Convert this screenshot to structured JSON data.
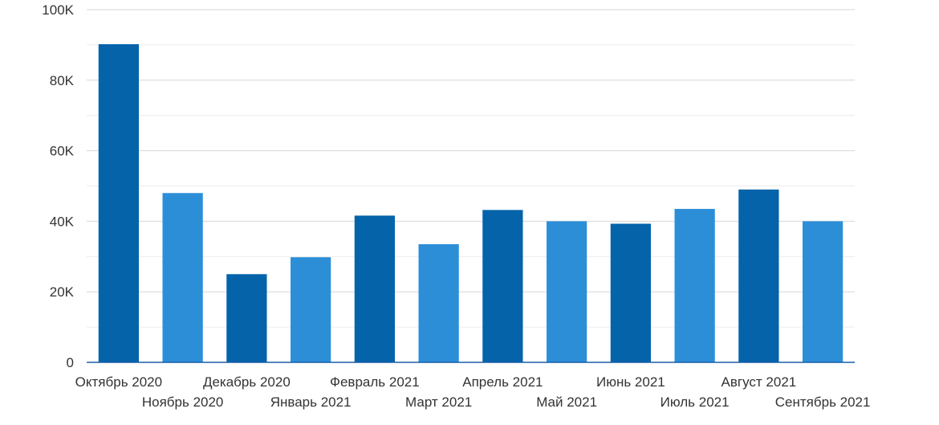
{
  "chart_data": {
    "type": "bar",
    "title": "",
    "xlabel": "",
    "ylabel": "",
    "categories": [
      "Октябрь 2020",
      "Ноябрь 2020",
      "Декабрь 2020",
      "Январь 2021",
      "Февраль 2021",
      "Март 2021",
      "Апрель 2021",
      "Май 2021",
      "Июнь 2021",
      "Июль 2021",
      "Август 2021",
      "Сентябрь 2021"
    ],
    "values": [
      90200,
      48000,
      25000,
      29800,
      41600,
      33500,
      43200,
      40000,
      39300,
      43500,
      49000,
      40000
    ],
    "ylim": [
      0,
      100000
    ],
    "yticks": [
      0,
      20000,
      40000,
      60000,
      80000,
      100000
    ],
    "ytick_labels": [
      "0",
      "20K",
      "40K",
      "60K",
      "80K",
      "100K"
    ],
    "grid": true,
    "minor_grid": true,
    "colors": [
      "#0563aa",
      "#2d8ed8"
    ]
  }
}
